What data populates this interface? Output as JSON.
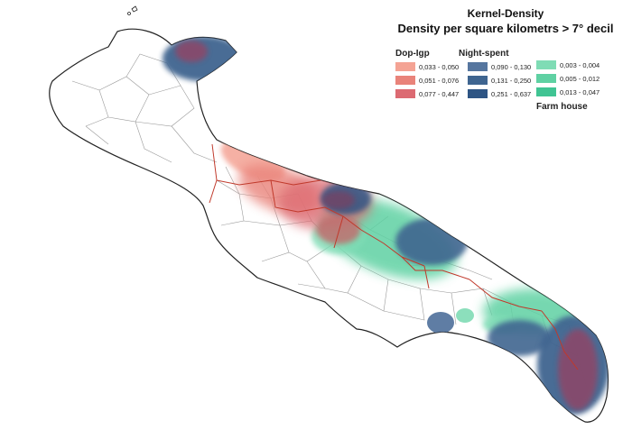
{
  "legend": {
    "title": "Kernel-Density",
    "subtitle": "Density per square kilometrs > 7° decil",
    "groups": [
      {
        "name": "Dop-Igp",
        "classes": [
          {
            "label": "0,033 - 0,050",
            "color": "#f4a394"
          },
          {
            "label": "0,051 - 0,076",
            "color": "#e9837a"
          },
          {
            "label": "0,077 - 0,447",
            "color": "#dc6a72"
          }
        ]
      },
      {
        "name": "Night-spent",
        "classes": [
          {
            "label": "0,090 - 0,130",
            "color": "#56769f"
          },
          {
            "label": "0,131 - 0,250",
            "color": "#3f6590"
          },
          {
            "label": "0,251 - 0,637",
            "color": "#2e5584"
          }
        ]
      },
      {
        "name": "Farm house",
        "classes": [
          {
            "label": "0,003 - 0,004",
            "color": "#7fdcb5"
          },
          {
            "label": "0,005 - 0,012",
            "color": "#5fd1a3"
          },
          {
            "label": "0,013 - 0,047",
            "color": "#40c493"
          }
        ]
      }
    ]
  }
}
